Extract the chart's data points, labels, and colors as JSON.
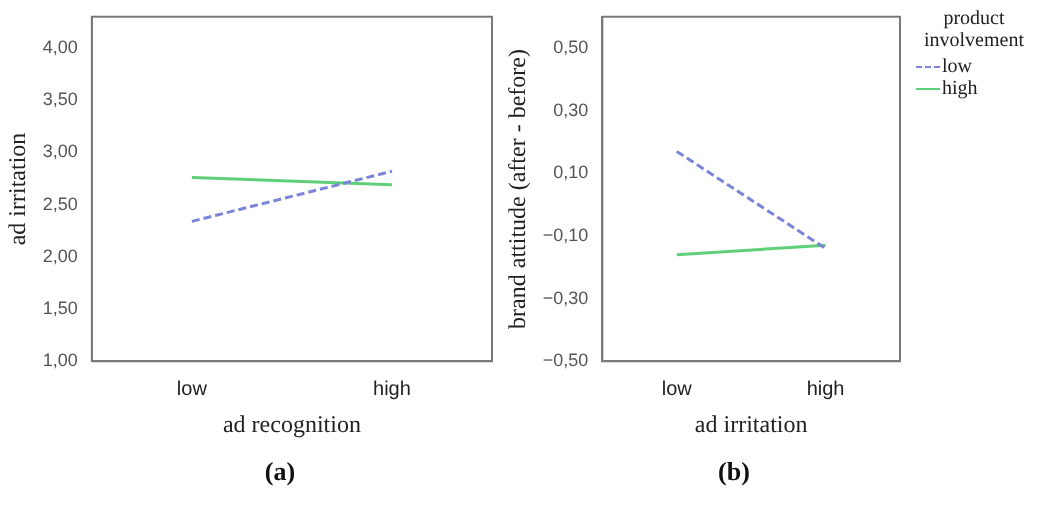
{
  "chart_data": [
    {
      "type": "line",
      "xlabel": "ad recognition",
      "ylabel": "ad irritation",
      "categories": [
        "low",
        "high"
      ],
      "series": [
        {
          "color": "#7b84d8",
          "line_style": "dashed",
          "values": [
            2.34,
            2.82
          ]
        },
        {
          "color": "#5fd07a",
          "line_style": "solid",
          "values": [
            2.76,
            2.69
          ]
        }
      ],
      "ylim": [
        1,
        4.3
      ],
      "yticks": [
        {
          "value": 1,
          "label": "1,00"
        },
        {
          "value": 1.5,
          "label": "1,50"
        },
        {
          "value": 2,
          "label": "2,00"
        },
        {
          "value": 2.5,
          "label": "2,50"
        },
        {
          "value": 3,
          "label": "3,00"
        },
        {
          "value": 3.5,
          "label": "3,50"
        },
        {
          "value": 4,
          "label": "4,00"
        }
      ],
      "grid": false,
      "legend": false,
      "marker": "none",
      "annotations": [
        "(a)"
      ]
    },
    {
      "type": "line",
      "xlabel": "ad irritation",
      "ylabel": "brand attitude (after - before)",
      "legend_title": "product involvement",
      "categories": [
        "low",
        "high"
      ],
      "series": [
        {
          "name": "low",
          "color": "#7b84d8",
          "line_style": "dashed",
          "values": [
            0.17,
            -0.14
          ]
        },
        {
          "name": "high",
          "color": "#5fd07a",
          "line_style": "solid",
          "values": [
            -0.16,
            -0.13
          ]
        }
      ],
      "ylim": [
        -0.5,
        0.6
      ],
      "yticks": [
        {
          "value": -0.5,
          "label": "−0,50"
        },
        {
          "value": -0.3,
          "label": "−0,30"
        },
        {
          "value": -0.1,
          "label": "−0,10"
        },
        {
          "value": 0.1,
          "label": "0,10"
        },
        {
          "value": 0.3,
          "label": "0,30"
        },
        {
          "value": 0.5,
          "label": "0,50"
        }
      ],
      "grid": false,
      "legend": "right",
      "marker": "none",
      "annotations": [
        "(b)"
      ]
    }
  ]
}
